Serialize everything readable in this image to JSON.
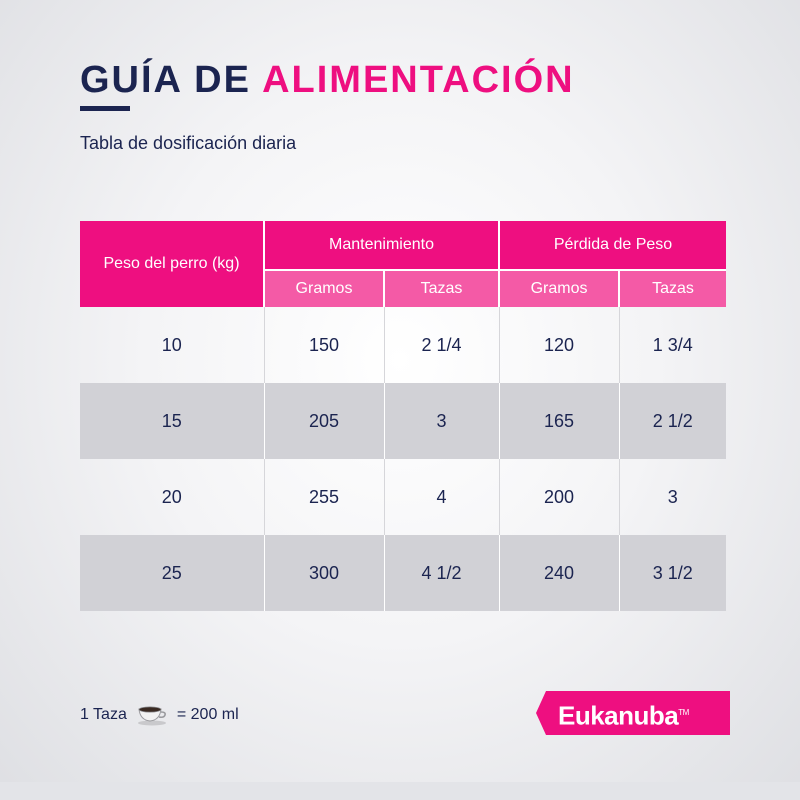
{
  "header": {
    "title_part1": "GUÍA DE",
    "title_part2": "ALIMENTACIÓN",
    "subtitle": "Tabla de dosificación diaria"
  },
  "table": {
    "col_weight": "Peso del perro (kg)",
    "group_maintenance": "Mantenimiento",
    "group_weight_loss": "Pérdida de Peso",
    "sub_grams": "Gramos",
    "sub_cups": "Tazas",
    "rows": [
      {
        "weight": "10",
        "m_grams": "150",
        "m_cups": "2  1/4",
        "l_grams": "120",
        "l_cups": "1  3/4"
      },
      {
        "weight": "15",
        "m_grams": "205",
        "m_cups": "3",
        "l_grams": "165",
        "l_cups": "2  1/2"
      },
      {
        "weight": "20",
        "m_grams": "255",
        "m_cups": "4",
        "l_grams": "200",
        "l_cups": "3"
      },
      {
        "weight": "25",
        "m_grams": "300",
        "m_cups": "4  1/2",
        "l_grams": "240",
        "l_cups": "3  1/2"
      }
    ]
  },
  "footnote": {
    "left": "1 Taza",
    "right": "= 200 ml",
    "icon": "cup-icon"
  },
  "brand": {
    "name": "Eukanuba",
    "tm": "TM"
  },
  "colors": {
    "accent": "#ee0f80",
    "accent_light": "#f45aa6",
    "navy": "#1b2450",
    "row_gray": "#d1d1d6"
  }
}
